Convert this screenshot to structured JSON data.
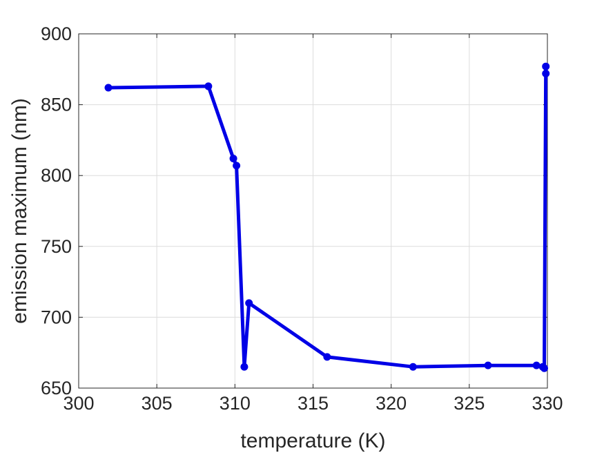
{
  "chart_data": {
    "type": "line",
    "title": "",
    "xlabel": "temperature (K)",
    "ylabel": "emission maximum (nm)",
    "xlim": [
      300,
      330
    ],
    "ylim": [
      650,
      900
    ],
    "xticks": [
      300,
      305,
      310,
      315,
      320,
      325,
      330
    ],
    "yticks": [
      650,
      700,
      750,
      800,
      850,
      900
    ],
    "xtick_labels": [
      "300",
      "305",
      "310",
      "315",
      "320",
      "325",
      "330"
    ],
    "ytick_labels": [
      "650",
      "700",
      "750",
      "800",
      "850",
      "900"
    ],
    "grid": true,
    "legend": "none",
    "series": [
      {
        "color": "#0000e6",
        "marker": "circle",
        "x": [
          301.9,
          308.3,
          309.9,
          310.1,
          310.6,
          310.9,
          315.9,
          321.4,
          326.2,
          329.3,
          329.7,
          329.8,
          329.9,
          329.9
        ],
        "y": [
          862,
          863,
          812,
          807,
          665,
          710,
          672,
          665,
          666,
          666,
          665,
          664,
          877,
          872
        ]
      }
    ]
  }
}
